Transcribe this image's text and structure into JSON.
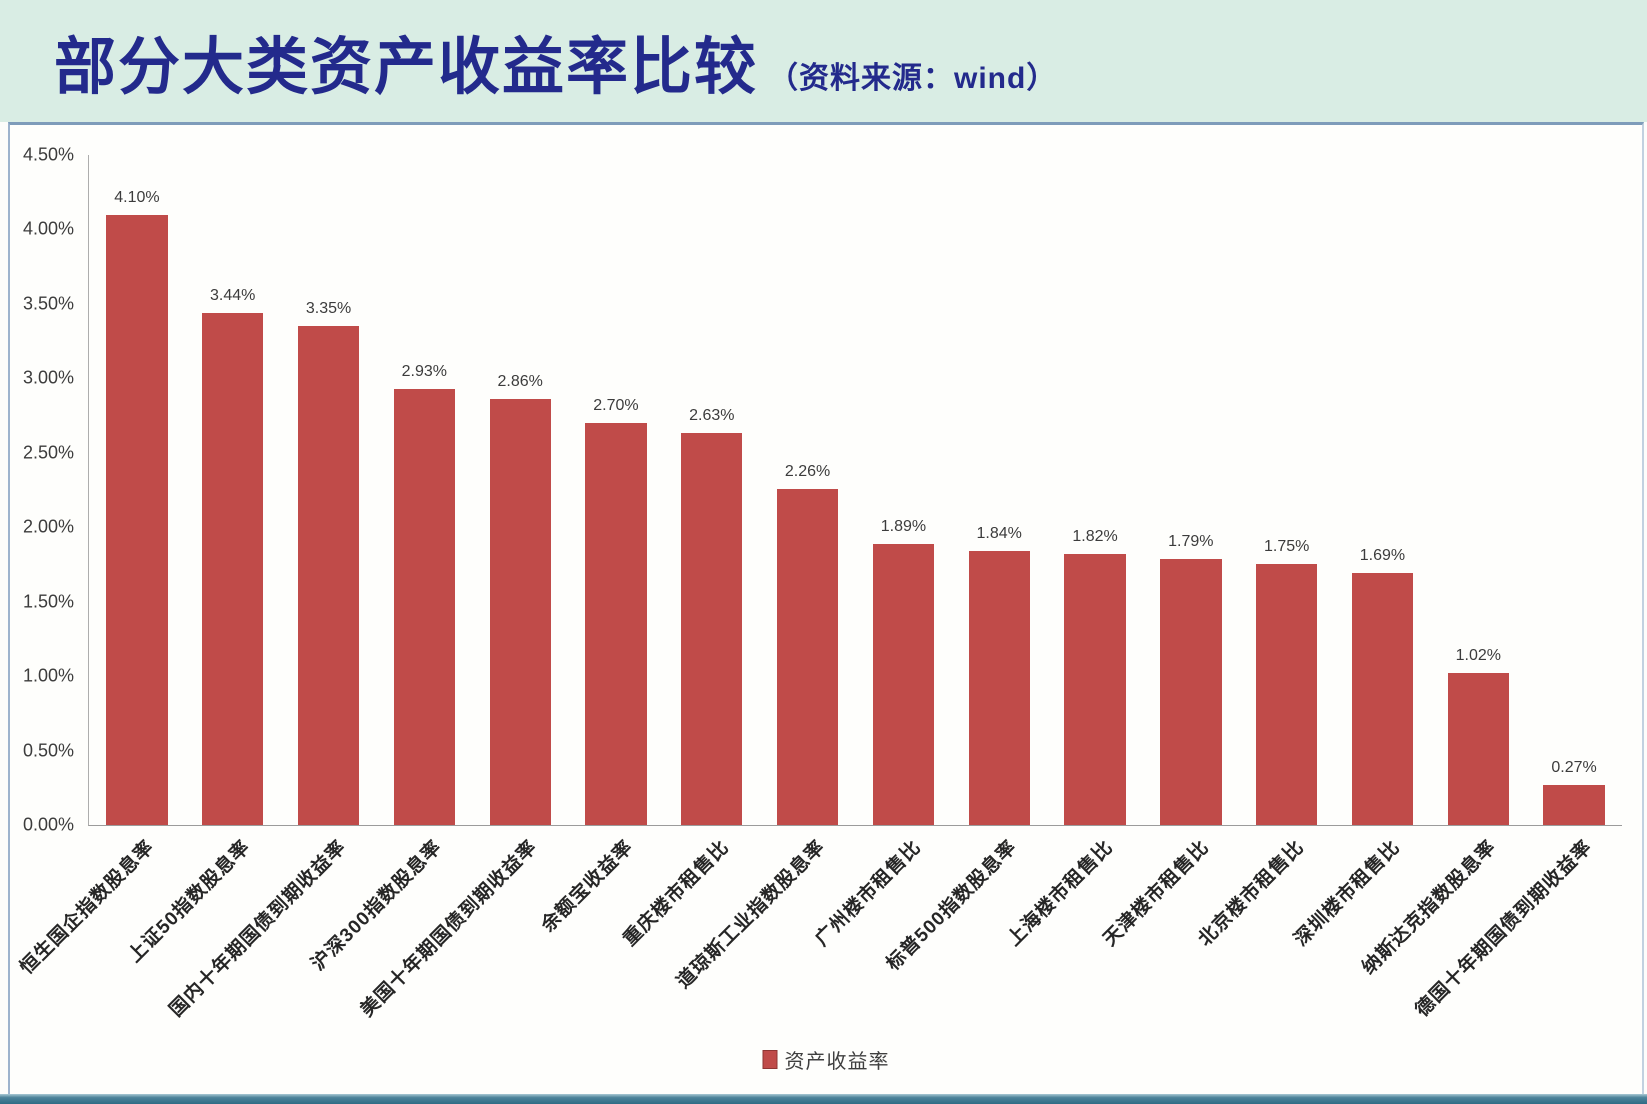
{
  "header": {
    "title": "部分大类资产收益率比较",
    "source": "（资料来源：wind）"
  },
  "legend": {
    "label": "资产收益率"
  },
  "chart_data": {
    "type": "bar",
    "title": "部分大类资产收益率比较",
    "source_note": "资料来源：wind",
    "categories": [
      "恒生国企指数股息率",
      "上证50指数股息率",
      "国内十年期国债到期收益率",
      "沪深300指数股息率",
      "美国十年期国债到期收益率",
      "余额宝收益率",
      "重庆楼市租售比",
      "道琼斯工业指数股息率",
      "广州楼市租售比",
      "标普500指数股息率",
      "上海楼市租售比",
      "天津楼市租售比",
      "北京楼市租售比",
      "深圳楼市租售比",
      "纳斯达克指数股息率",
      "德国十年期国债到期收益率"
    ],
    "series": [
      {
        "name": "资产收益率",
        "values": [
          4.1,
          3.44,
          3.35,
          2.93,
          2.86,
          2.7,
          2.63,
          2.26,
          1.89,
          1.84,
          1.82,
          1.79,
          1.75,
          1.69,
          1.02,
          0.27
        ],
        "labels": [
          "4.10%",
          "3.44%",
          "3.35%",
          "2.93%",
          "2.86%",
          "2.70%",
          "2.63%",
          "2.26%",
          "1.89%",
          "1.84%",
          "1.82%",
          "1.79%",
          "1.75%",
          "1.69%",
          "1.02%",
          "0.27%"
        ]
      }
    ],
    "xlabel": "",
    "ylabel": "",
    "ylim": [
      0,
      4.5
    ],
    "ytick_values": [
      0,
      0.5,
      1.0,
      1.5,
      2.0,
      2.5,
      3.0,
      3.5,
      4.0,
      4.5
    ],
    "ytick_labels": [
      "0.00%",
      "0.50%",
      "1.00%",
      "1.50%",
      "2.00%",
      "2.50%",
      "3.00%",
      "3.50%",
      "4.00%",
      "4.50%"
    ],
    "grid": false,
    "legend_position": "bottom"
  },
  "colors": {
    "bar": "#C04B49",
    "header_bg": "#D9EDE4",
    "title_text": "#232A8C",
    "panel_border": "#9DB3CD",
    "bottom_bar": "#2F6B84",
    "value_label_text": "#3C3C3C",
    "axis_line": "#9B9B9B"
  }
}
